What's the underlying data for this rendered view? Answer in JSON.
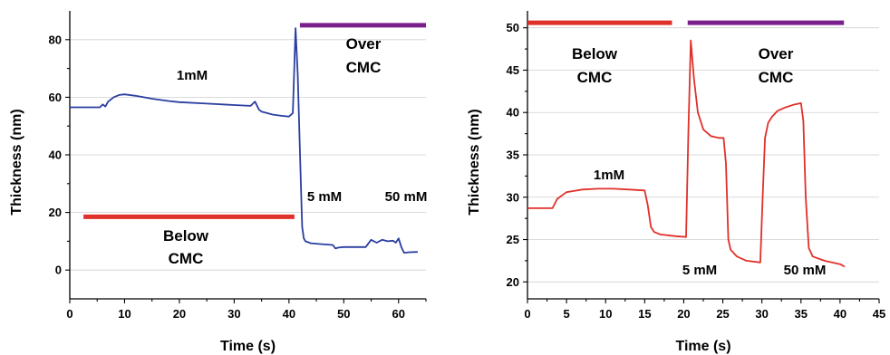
{
  "chart_data": [
    {
      "type": "line",
      "xlabel": "Time (s)",
      "ylabel": "Thickness (nm)",
      "xlim": [
        0,
        65
      ],
      "ylim": [
        -10,
        90
      ],
      "xticks": [
        0,
        10,
        20,
        30,
        40,
        50,
        60
      ],
      "yticks": [
        0,
        20,
        40,
        60,
        80
      ],
      "grid": "horizontal",
      "colors": {
        "line": "#2a3ea0",
        "below_bar": "#e0302a",
        "over_bar": "#7a1e8c"
      },
      "series": [
        {
          "x": [
            0,
            5.5,
            6,
            6.5,
            7,
            8,
            9,
            10,
            12,
            15,
            18,
            20,
            25,
            30,
            33,
            33.8,
            34.5,
            35,
            36,
            37,
            38,
            39,
            40,
            40.7,
            41.2,
            41.6,
            42.1,
            42.4,
            42.7,
            43,
            44,
            46,
            48,
            48.5,
            49,
            50,
            53,
            54,
            55,
            56,
            57,
            58,
            59,
            59.5,
            60,
            60.5,
            61,
            62,
            63.5
          ],
          "y": [
            56.5,
            56.5,
            57.5,
            56.8,
            58.5,
            60,
            60.8,
            61,
            60.5,
            59.5,
            58.7,
            58.3,
            57.8,
            57.3,
            57,
            58.5,
            55.8,
            55,
            54.5,
            54,
            53.7,
            53.5,
            53.3,
            54.5,
            84,
            68,
            35,
            15,
            11,
            10,
            9.3,
            9,
            8.7,
            7.5,
            7.8,
            8,
            8,
            8,
            10.5,
            9.5,
            10.5,
            10,
            10.2,
            9.5,
            11,
            8,
            6,
            6.2,
            6.3
          ]
        }
      ],
      "annotations": {
        "below_label": [
          "Below",
          "CMC"
        ],
        "over_label": [
          "Over",
          "CMC"
        ],
        "conc_1": "1mM",
        "conc_2": "5 mM",
        "conc_3": "50 mM"
      },
      "bars": {
        "below": {
          "x_range": [
            2.5,
            41
          ],
          "y": 18.5
        },
        "over": {
          "x_range": [
            42,
            65
          ],
          "y": 85
        }
      }
    },
    {
      "type": "line",
      "xlabel": "Time (s)",
      "ylabel": "Thickness (nm)",
      "xlim": [
        0,
        45
      ],
      "ylim": [
        18,
        52
      ],
      "xticks": [
        0,
        5,
        10,
        15,
        20,
        25,
        30,
        35,
        40,
        45
      ],
      "yticks": [
        20,
        25,
        30,
        35,
        40,
        45,
        50
      ],
      "grid": "horizontal",
      "colors": {
        "line": "#e0302a",
        "below_bar": "#e0302a",
        "over_bar": "#7a1e8c"
      },
      "series": [
        {
          "x": [
            0,
            3.2,
            3.8,
            5,
            7,
            9,
            11,
            13,
            15,
            15.4,
            15.8,
            16.2,
            17,
            19,
            20.3,
            20.6,
            20.9,
            21.3,
            21.8,
            22.5,
            23.5,
            24.5,
            25.1,
            25.4,
            25.7,
            26,
            26.8,
            28,
            29.8,
            30.1,
            30.4,
            30.8,
            31.3,
            32,
            33,
            34,
            35,
            35.3,
            35.6,
            36,
            36.5,
            38,
            40,
            40.6
          ],
          "y": [
            28.7,
            28.7,
            29.8,
            30.6,
            30.9,
            31,
            31,
            30.9,
            30.8,
            29,
            26.5,
            25.9,
            25.6,
            25.4,
            25.3,
            38,
            48.5,
            44,
            40,
            38,
            37.2,
            37,
            37,
            34,
            25,
            23.8,
            23,
            22.5,
            22.3,
            30,
            37,
            38.8,
            39.5,
            40.2,
            40.6,
            40.9,
            41.1,
            39,
            30,
            24,
            23,
            22.5,
            22.1,
            21.8
          ]
        }
      ],
      "annotations": {
        "below_label": [
          "Below",
          "CMC"
        ],
        "over_label": [
          "Over",
          "CMC"
        ],
        "conc_1": "1mM",
        "conc_2": "5 mM",
        "conc_3": "50 mM"
      },
      "bars": {
        "below": {
          "x_range": [
            0,
            18.5
          ],
          "y": 50.6
        },
        "over": {
          "x_range": [
            20.5,
            40.5
          ],
          "y": 50.6
        }
      }
    }
  ]
}
